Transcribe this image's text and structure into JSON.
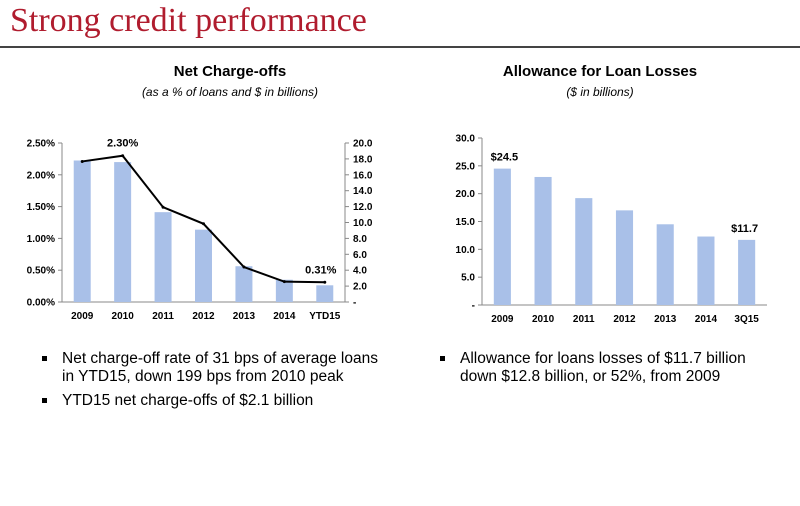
{
  "slide": {
    "title": "Strong credit performance"
  },
  "charts": {
    "left": {
      "title": "Net Charge-offs",
      "subtitle": "(as a % of loans and $ in billions)"
    },
    "right": {
      "title": "Allowance for Loan Losses",
      "subtitle": "($ in billions)"
    }
  },
  "bullets": {
    "left": [
      "Net charge-off rate of 31 bps of average loans in YTD15, down 199 bps from 2010 peak",
      "YTD15 net charge-offs of $2.1 billion"
    ],
    "right": [
      "Allowance for loans losses of $11.7 billion down $12.8 billion, or 52%, from 2009"
    ]
  },
  "colors": {
    "title_red": "#b01c2e",
    "bar": "#a9c0e8",
    "line": "#000000",
    "axis": "#888888"
  },
  "chart_data": [
    {
      "type": "bar",
      "title": "Net Charge-offs",
      "subtitle": "(as a % of loans and $ in billions)",
      "categories": [
        "2009",
        "2010",
        "2011",
        "2012",
        "2013",
        "2014",
        "YTD15"
      ],
      "series": [
        {
          "name": "Net charge-offs ($ in billions)",
          "type": "bar",
          "axis": "right",
          "values": [
            17.8,
            17.6,
            11.3,
            9.1,
            4.5,
            2.8,
            2.1
          ]
        },
        {
          "name": "Net charge-off rate (%)",
          "type": "line",
          "axis": "left",
          "values": [
            2.21,
            2.3,
            1.49,
            1.23,
            0.55,
            0.32,
            0.31
          ]
        }
      ],
      "y_left": {
        "range": [
          0,
          2.5
        ],
        "ticks": [
          "2.50%",
          "2.00%",
          "1.50%",
          "1.00%",
          "0.50%",
          "0.00%"
        ]
      },
      "y_right": {
        "range": [
          0,
          20
        ],
        "ticks": [
          "20.0",
          "18.0",
          "16.0",
          "14.0",
          "12.0",
          "10.0",
          "8.0",
          "6.0",
          "4.0",
          "2.0",
          "-"
        ]
      },
      "data_labels": [
        {
          "series": "Net charge-off rate (%)",
          "category": "2010",
          "text": "2.30%"
        },
        {
          "series": "Net charge-off rate (%)",
          "category": "YTD15",
          "text": "0.31%"
        }
      ]
    },
    {
      "type": "bar",
      "title": "Allowance for Loan Losses",
      "subtitle": "($ in billions)",
      "categories": [
        "2009",
        "2010",
        "2011",
        "2012",
        "2013",
        "2014",
        "3Q15"
      ],
      "values": [
        24.5,
        23.0,
        19.2,
        17.0,
        14.5,
        12.3,
        11.7
      ],
      "y": {
        "range": [
          0,
          30
        ],
        "ticks": [
          "30.0",
          "25.0",
          "20.0",
          "15.0",
          "10.0",
          "5.0",
          "-"
        ]
      },
      "data_labels": [
        {
          "category": "2009",
          "text": "$24.5"
        },
        {
          "category": "3Q15",
          "text": "$11.7"
        }
      ]
    }
  ]
}
